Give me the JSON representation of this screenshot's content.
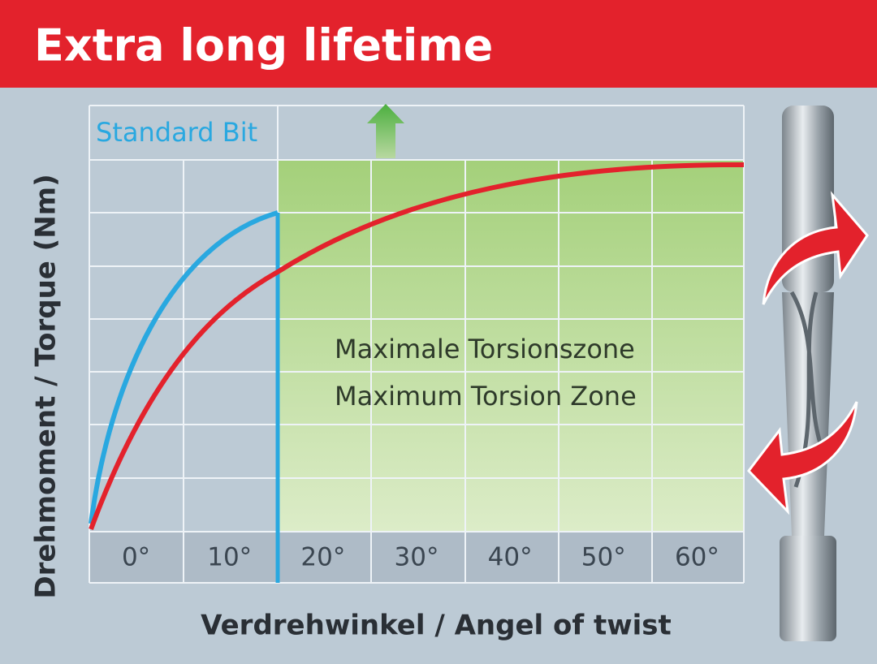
{
  "header": {
    "title": "Extra long lifetime"
  },
  "chart": {
    "series_label": "Standard Bit",
    "zone_label": [
      "Maximale Torsionszone",
      "Maximum Torsion Zone"
    ],
    "x_labels": [
      "0°",
      "10°",
      "20°",
      "30°",
      "40°",
      "50°",
      "60°"
    ],
    "y_axis_label": "Drehmoment / Torque (Nm)",
    "x_axis_label": "Verdrehwinkel / Angel of twist"
  }
}
